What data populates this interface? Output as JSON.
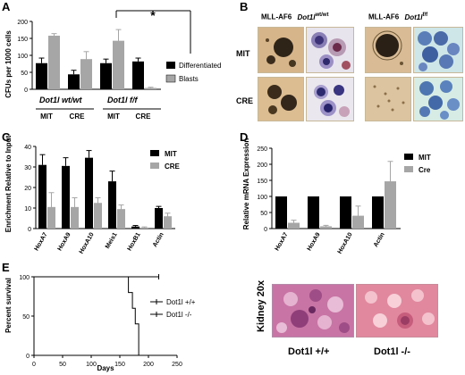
{
  "panels": {
    "A": {
      "label": "A",
      "ylabel": "CFUs per 1000 cells",
      "yticks": [
        "0",
        "50",
        "100",
        "150",
        "200"
      ],
      "legend": [
        "Differentiated",
        "Blasts"
      ],
      "genotype_wt": "Dot1l wt/wt",
      "genotype_ff": "Dot1l f/f",
      "groups": [
        "MIT",
        "CRE",
        "MIT",
        "CRE"
      ],
      "sig": "*",
      "colors": {
        "dark": "#000000",
        "light": "#a6a6a6"
      }
    },
    "B": {
      "label": "B",
      "hdr_left_a": "MLL-AF6",
      "hdr_left_b": "Dot1l",
      "hdr_left_sup": "wt/wt",
      "hdr_right_a": "MLL-AF6",
      "hdr_right_b": "Dot1l",
      "hdr_right_sup": "f/f",
      "row_mit": "MIT",
      "row_cre": "CRE"
    },
    "C": {
      "label": "C",
      "ylabel": "Enrichment Relative to Input",
      "yticks": [
        "0",
        "10",
        "20",
        "30",
        "40"
      ],
      "legend": [
        "MIT",
        "CRE"
      ]
    },
    "D": {
      "label": "D",
      "ylabel": "Relative mRNA Expression",
      "yticks": [
        "0",
        "50",
        "100",
        "150",
        "200",
        "250"
      ],
      "legend": [
        "MIT",
        "Cre"
      ]
    },
    "E": {
      "label": "E",
      "ylabel": "Percent survival",
      "xlabel": "Days",
      "yticks": [
        "0",
        "50",
        "100"
      ],
      "xticks": [
        "0",
        "50",
        "100",
        "150",
        "200",
        "250"
      ],
      "legend": [
        "Dot1l +/+",
        "Dot1l -/-"
      ]
    },
    "F": {
      "side_label": "Kidney 20x",
      "cap_left": "Dot1l +/+",
      "cap_right": "Dot1l -/-"
    }
  },
  "chart_data": [
    {
      "type": "bar",
      "categories": [
        "Dot1l wt/wt MIT",
        "Dot1l wt/wt CRE",
        "Dot1l f/f MIT",
        "Dot1l f/f CRE"
      ],
      "series": [
        {
          "name": "Differentiated",
          "values": [
            77,
            44,
            77,
            82
          ],
          "errors": [
            15,
            12,
            12,
            10
          ]
        },
        {
          "name": "Blasts",
          "values": [
            158,
            89,
            143,
            4
          ],
          "errors": [
            6,
            22,
            33,
            2
          ]
        }
      ],
      "ylabel": "CFUs per 1000 cells",
      "ylim": [
        0,
        200
      ]
    },
    {
      "type": "bar",
      "categories": [
        "HoxA7",
        "HoxA9",
        "HoxA10",
        "Meis1",
        "HoxB1",
        "Actin"
      ],
      "series": [
        {
          "name": "MIT",
          "values": [
            31,
            30.5,
            34.5,
            23,
            1,
            10
          ],
          "errors": [
            5,
            4,
            3.5,
            5,
            0.5,
            0.8
          ]
        },
        {
          "name": "CRE",
          "values": [
            10.5,
            10.5,
            12.5,
            9.5,
            0.5,
            6
          ],
          "errors": [
            7,
            4.5,
            2.5,
            2,
            0.3,
            1.5
          ]
        }
      ],
      "ylabel": "Enrichment Relative to Input",
      "ylim": [
        0,
        40
      ]
    },
    {
      "type": "bar",
      "categories": [
        "HoxA7",
        "HoxA9",
        "HoxA10",
        "Actin"
      ],
      "series": [
        {
          "name": "MIT",
          "values": [
            100,
            100,
            100,
            100
          ],
          "errors": [
            0,
            0,
            0,
            0
          ]
        },
        {
          "name": "Cre",
          "values": [
            18,
            7,
            40,
            147
          ],
          "errors": [
            8,
            3,
            30,
            62
          ]
        }
      ],
      "ylabel": "Relative mRNA Expression",
      "ylim": [
        0,
        250
      ]
    },
    {
      "type": "line",
      "xlabel": "Days",
      "ylabel": "Percent survival",
      "xlim": [
        0,
        250
      ],
      "ylim": [
        0,
        100
      ],
      "series": [
        {
          "name": "Dot1l +/+",
          "x": [
            0,
            218
          ],
          "y": [
            100,
            100
          ]
        },
        {
          "name": "Dot1l -/-",
          "x": [
            0,
            165,
            165,
            172,
            172,
            177,
            177,
            183,
            183
          ],
          "y": [
            100,
            100,
            80,
            80,
            60,
            60,
            40,
            40,
            0
          ]
        }
      ]
    }
  ]
}
